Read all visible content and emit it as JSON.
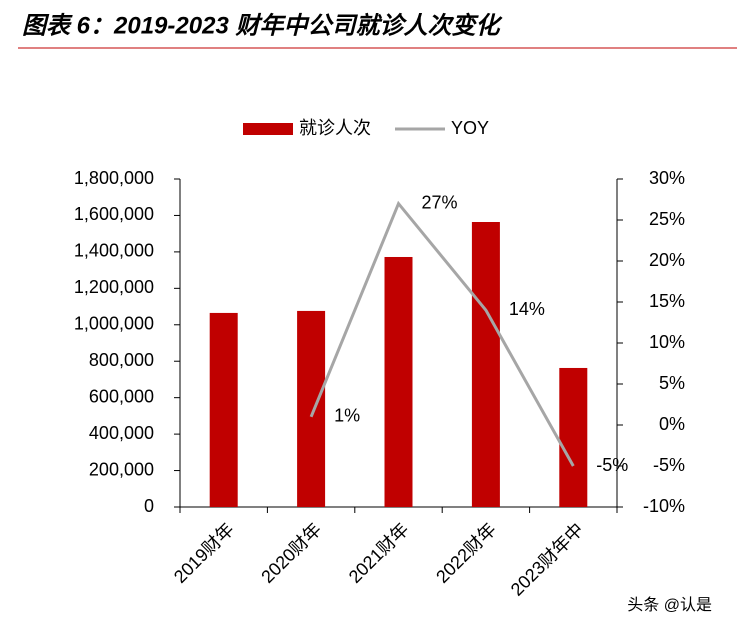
{
  "chart_data": {
    "type": "bar",
    "title": "图表 6：2019-2023 财年中公司就诊人次变化",
    "categories": [
      "2019财年",
      "2020财年",
      "2021财年",
      "2022财年",
      "2023财年中"
    ],
    "series": [
      {
        "name": "就诊人次",
        "color": "#c00000",
        "values": [
          1065000,
          1076000,
          1372000,
          1564000,
          763000
        ]
      },
      {
        "name": "YOY",
        "type": "line",
        "axis": "y2",
        "color": "#a6a6a6",
        "values": [
          null,
          1,
          27,
          14,
          -5
        ],
        "value_labels": [
          null,
          "1%",
          "27%",
          "14%",
          "-5%"
        ]
      }
    ],
    "ylim": [
      0,
      1800000
    ],
    "yticks": [
      0,
      {
        "value": 200000,
        "label": "200,000"
      },
      {
        "value": 400000,
        "label": "400,000"
      },
      {
        "value": 600000,
        "label": "600,000"
      },
      {
        "value": 800000,
        "label": "800,000"
      },
      {
        "value": 1000000,
        "label": "1,000,000"
      },
      {
        "value": 1200000,
        "label": "1,200,000"
      },
      {
        "value": 1400000,
        "label": "1,400,000"
      },
      {
        "value": 1600000,
        "label": "1,600,000"
      },
      {
        "value": 1800000,
        "label": "1,800,000"
      }
    ],
    "y2lim": [
      -10,
      30
    ],
    "y2ticks": [
      {
        "value": -10,
        "label": "-10%"
      },
      {
        "value": -5,
        "label": "-5%"
      },
      {
        "value": 0,
        "label": "0%"
      },
      {
        "value": 5,
        "label": "5%"
      },
      {
        "value": 10,
        "label": "10%"
      },
      {
        "value": 15,
        "label": "15%"
      },
      {
        "value": 20,
        "label": "20%"
      },
      {
        "value": 25,
        "label": "25%"
      },
      {
        "value": 30,
        "label": "30%"
      }
    ],
    "legend": "top",
    "watermark": "头条 @认是"
  }
}
